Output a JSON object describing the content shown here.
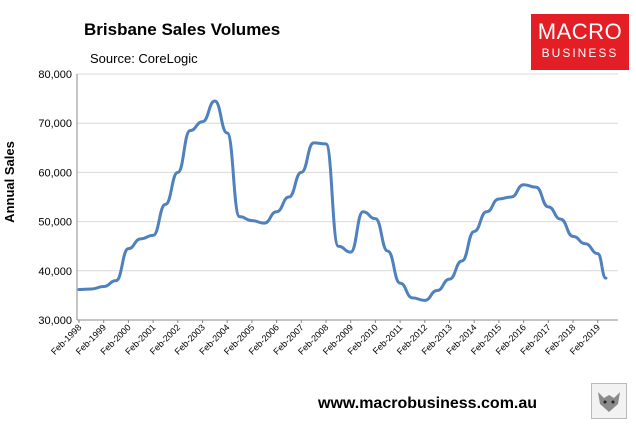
{
  "header": {
    "title": "Brisbane Sales Volumes",
    "source": "Source: CoreLogic"
  },
  "logo": {
    "line1": "MACRO",
    "line2": "BUSINESS",
    "color": "#e31e24"
  },
  "footer": {
    "website": "www.macrobusiness.com.au"
  },
  "chart_data": {
    "type": "line",
    "title": "Brisbane Sales Volumes",
    "ylabel": "Annual Sales",
    "xlabel": "",
    "ylim": [
      30000,
      80000
    ],
    "yticks": [
      30000,
      40000,
      50000,
      60000,
      70000,
      80000
    ],
    "ytick_labels": [
      "30,000",
      "40,000",
      "50,000",
      "60,000",
      "70,000",
      "80,000"
    ],
    "xtick_labels": [
      "Feb-1998",
      "Feb-1999",
      "Feb-2000",
      "Feb-2001",
      "Feb-2002",
      "Feb-2003",
      "Feb-2004",
      "Feb-2005",
      "Feb-2006",
      "Feb-2007",
      "Feb-2008",
      "Feb-2009",
      "Feb-2010",
      "Feb-2011",
      "Feb-2012",
      "Feb-2013",
      "Feb-2014",
      "Feb-2015",
      "Feb-2016",
      "Feb-2017",
      "Feb-2018",
      "Feb-2019"
    ],
    "grid": true,
    "line_color": "#4f81bd",
    "series": [
      {
        "x": [
          "Feb-1998",
          "Aug-1998",
          "Feb-1999",
          "Aug-1999",
          "Feb-2000",
          "Aug-2000",
          "Feb-2001",
          "Aug-2001",
          "Feb-2002",
          "Aug-2002",
          "Feb-2003",
          "Aug-2003",
          "Feb-2004",
          "Aug-2004",
          "Feb-2005",
          "Aug-2005",
          "Feb-2006",
          "Aug-2006",
          "Feb-2007",
          "Aug-2007",
          "Feb-2008",
          "Aug-2008",
          "Feb-2009",
          "Aug-2009",
          "Feb-2010",
          "Aug-2010",
          "Feb-2011",
          "Aug-2011",
          "Feb-2012",
          "Aug-2012",
          "Feb-2013",
          "Aug-2013",
          "Feb-2014",
          "Aug-2014",
          "Feb-2015",
          "Aug-2015",
          "Feb-2016",
          "Aug-2016",
          "Feb-2017",
          "Aug-2017",
          "Feb-2018",
          "Aug-2018",
          "Feb-2019",
          "Jun-2019"
        ],
        "values": [
          36200,
          36300,
          36800,
          38000,
          44500,
          46500,
          47200,
          53500,
          60000,
          68500,
          70300,
          74500,
          68000,
          51000,
          50200,
          49700,
          52000,
          55000,
          60000,
          66000,
          65800,
          45000,
          43800,
          52000,
          50600,
          44000,
          37500,
          34500,
          34000,
          36000,
          38300,
          42000,
          48000,
          52000,
          54600,
          55000,
          57500,
          57000,
          53000,
          50500,
          47000,
          45500,
          43500,
          38500
        ]
      }
    ]
  }
}
